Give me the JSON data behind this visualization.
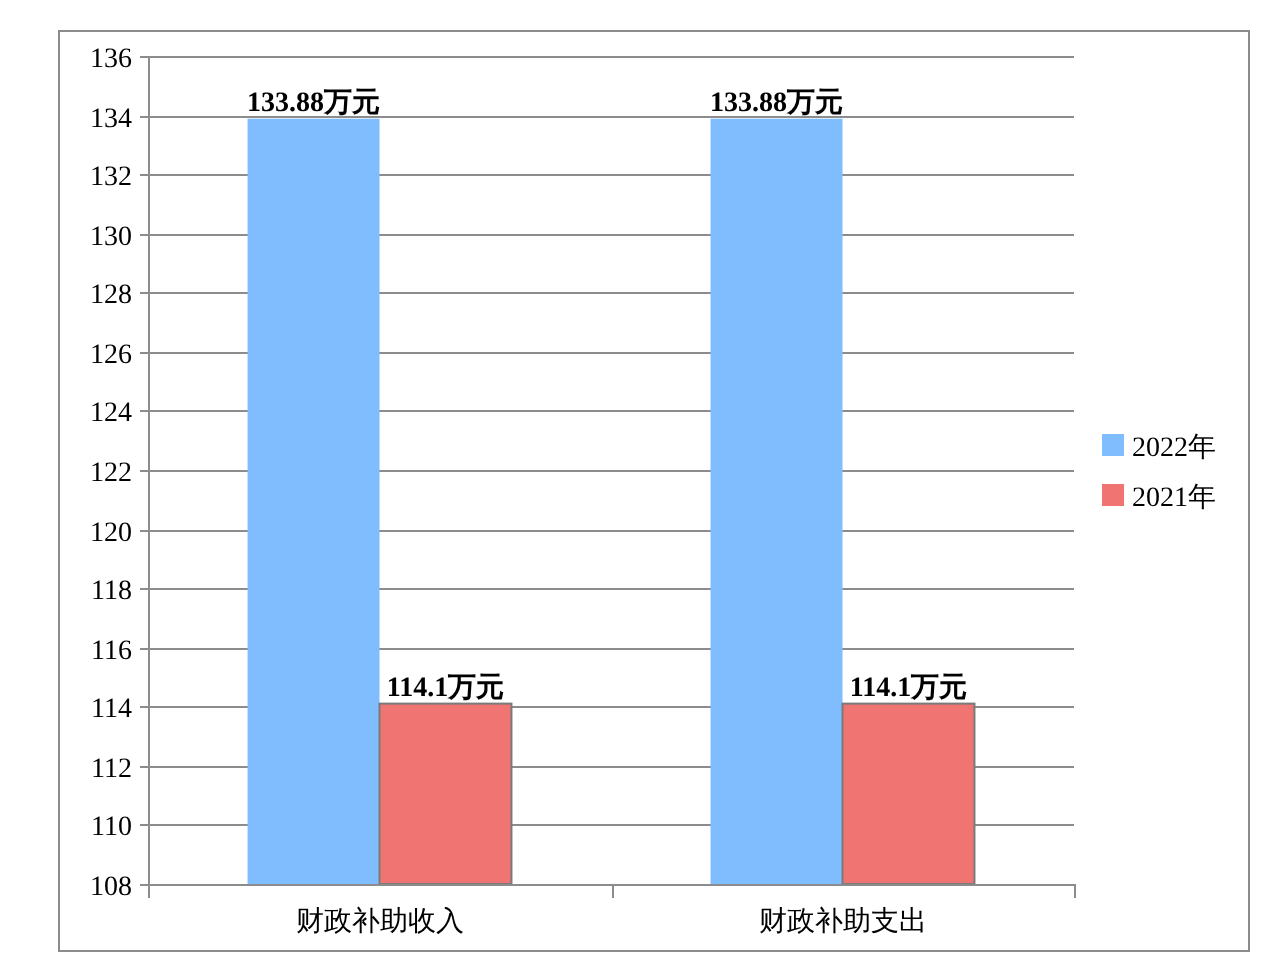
{
  "chart_data": {
    "type": "bar",
    "categories": [
      "财政补助收入",
      "财政补助支出"
    ],
    "series": [
      {
        "name": "2022年",
        "color": "#80bdff",
        "values": [
          133.88,
          133.88
        ],
        "value_labels": [
          "133.88万元",
          "133.88万元"
        ]
      },
      {
        "name": "2021年",
        "color": "#f07472",
        "values": [
          114.1,
          114.1
        ],
        "value_labels": [
          "114.1万元",
          "114.1万元"
        ]
      }
    ],
    "ylim": [
      108,
      136
    ],
    "yticks": [
      108,
      110,
      112,
      114,
      116,
      118,
      120,
      122,
      124,
      126,
      128,
      130,
      132,
      134,
      136
    ],
    "grid": "y",
    "legend": "right"
  }
}
